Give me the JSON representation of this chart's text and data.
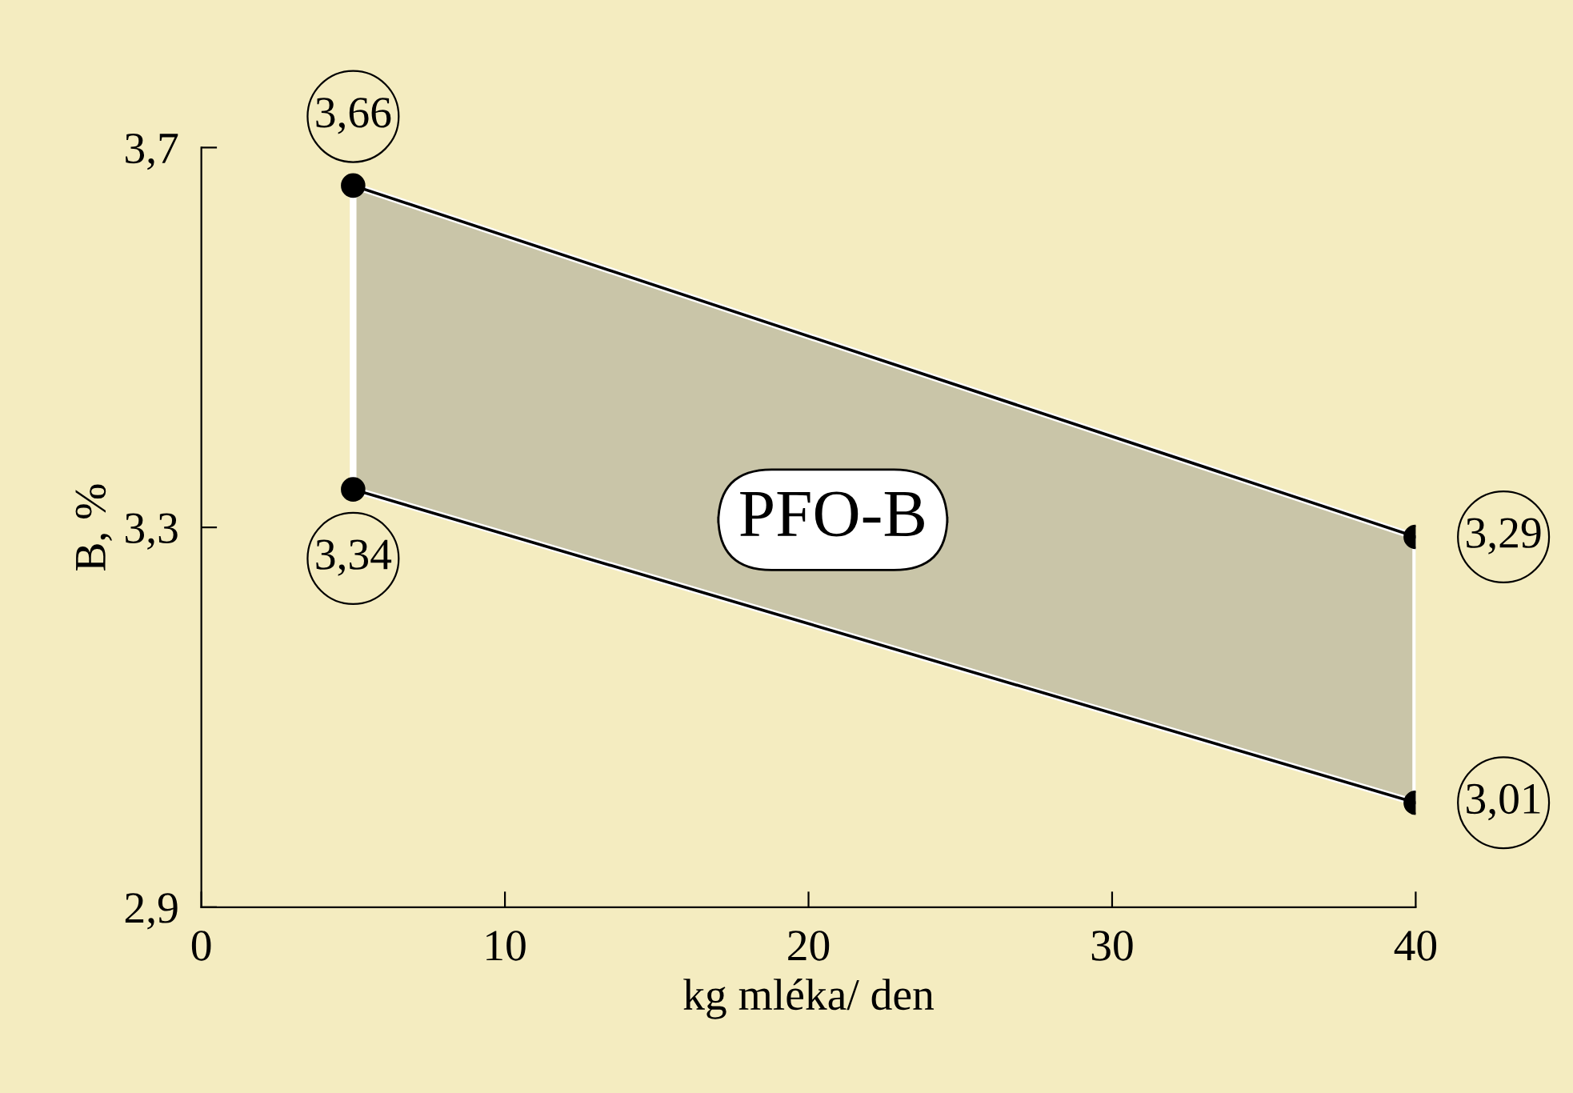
{
  "chart_data": {
    "type": "line",
    "xlabel": "kg mléka/ den",
    "ylabel": "B, %",
    "x": [
      5,
      40
    ],
    "series": [
      {
        "color": "#000000",
        "values": [
          3.66,
          3.29
        ],
        "value_labels": [
          "3,66",
          "3,29"
        ],
        "lower": [
          3.34,
          3.01
        ],
        "upper": [
          3.66,
          3.29
        ]
      },
      {
        "color": "#000000",
        "values": [
          3.34,
          3.01
        ],
        "value_labels": [
          "3,34",
          "3,01"
        ]
      }
    ],
    "marker": "circle",
    "line_style": "solid",
    "xlim": [
      0,
      40
    ],
    "xticks": [
      0,
      10,
      20,
      30,
      40
    ],
    "ylim": [
      2.9,
      3.7
    ],
    "yticks": [
      {
        "value": 2.9,
        "label": "2,9"
      },
      {
        "value": 3.3,
        "label": "3,3"
      },
      {
        "value": 3.7,
        "label": "3,7"
      }
    ],
    "annotations": [
      "PFO-B"
    ],
    "grid": false,
    "legend": false
  }
}
